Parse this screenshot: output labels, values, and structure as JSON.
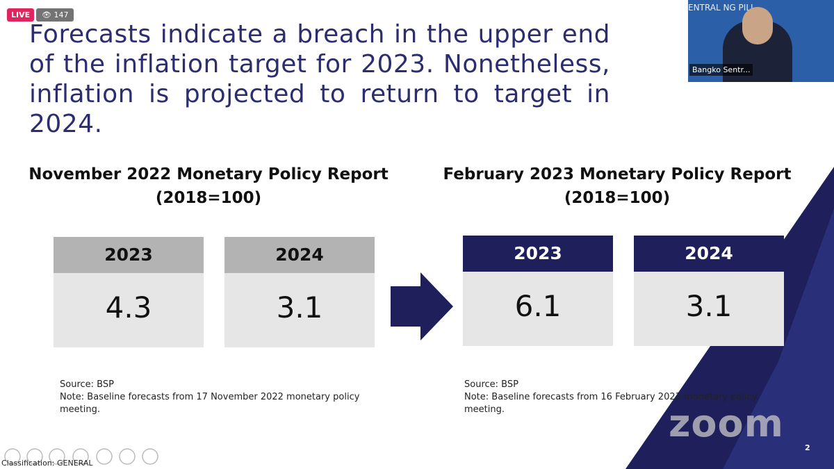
{
  "stream": {
    "live_badge": "LIVE",
    "viewers": "147",
    "watermark": "zoom"
  },
  "video": {
    "background_text": "ENTRAL NG PILI",
    "speaker_name": "Bangko Sentr..."
  },
  "slide": {
    "title": "Forecasts indicate a breach in the upper end of the inflation target for 2023. Nonetheless, inflation is projected to return to target in 2024.",
    "panels": [
      {
        "heading": "November 2022 Monetary Policy Report",
        "subheading": "(2018=100)",
        "boxes": [
          {
            "year": "2023",
            "value": "4.3"
          },
          {
            "year": "2024",
            "value": "3.1"
          }
        ],
        "source": "Source: BSP",
        "note": "Note: Baseline forecasts from 17 November 2022 monetary policy meeting."
      },
      {
        "heading": "February 2023 Monetary Policy Report",
        "subheading": "(2018=100)",
        "boxes": [
          {
            "year": "2023",
            "value": "6.1"
          },
          {
            "year": "2024",
            "value": "3.1"
          }
        ],
        "source": "Source: BSP",
        "note": "Note: Baseline forecasts from 16 February 2023 monetary policy meeting."
      }
    ],
    "classification": "Classification: GENERAL",
    "page_number": "2"
  }
}
